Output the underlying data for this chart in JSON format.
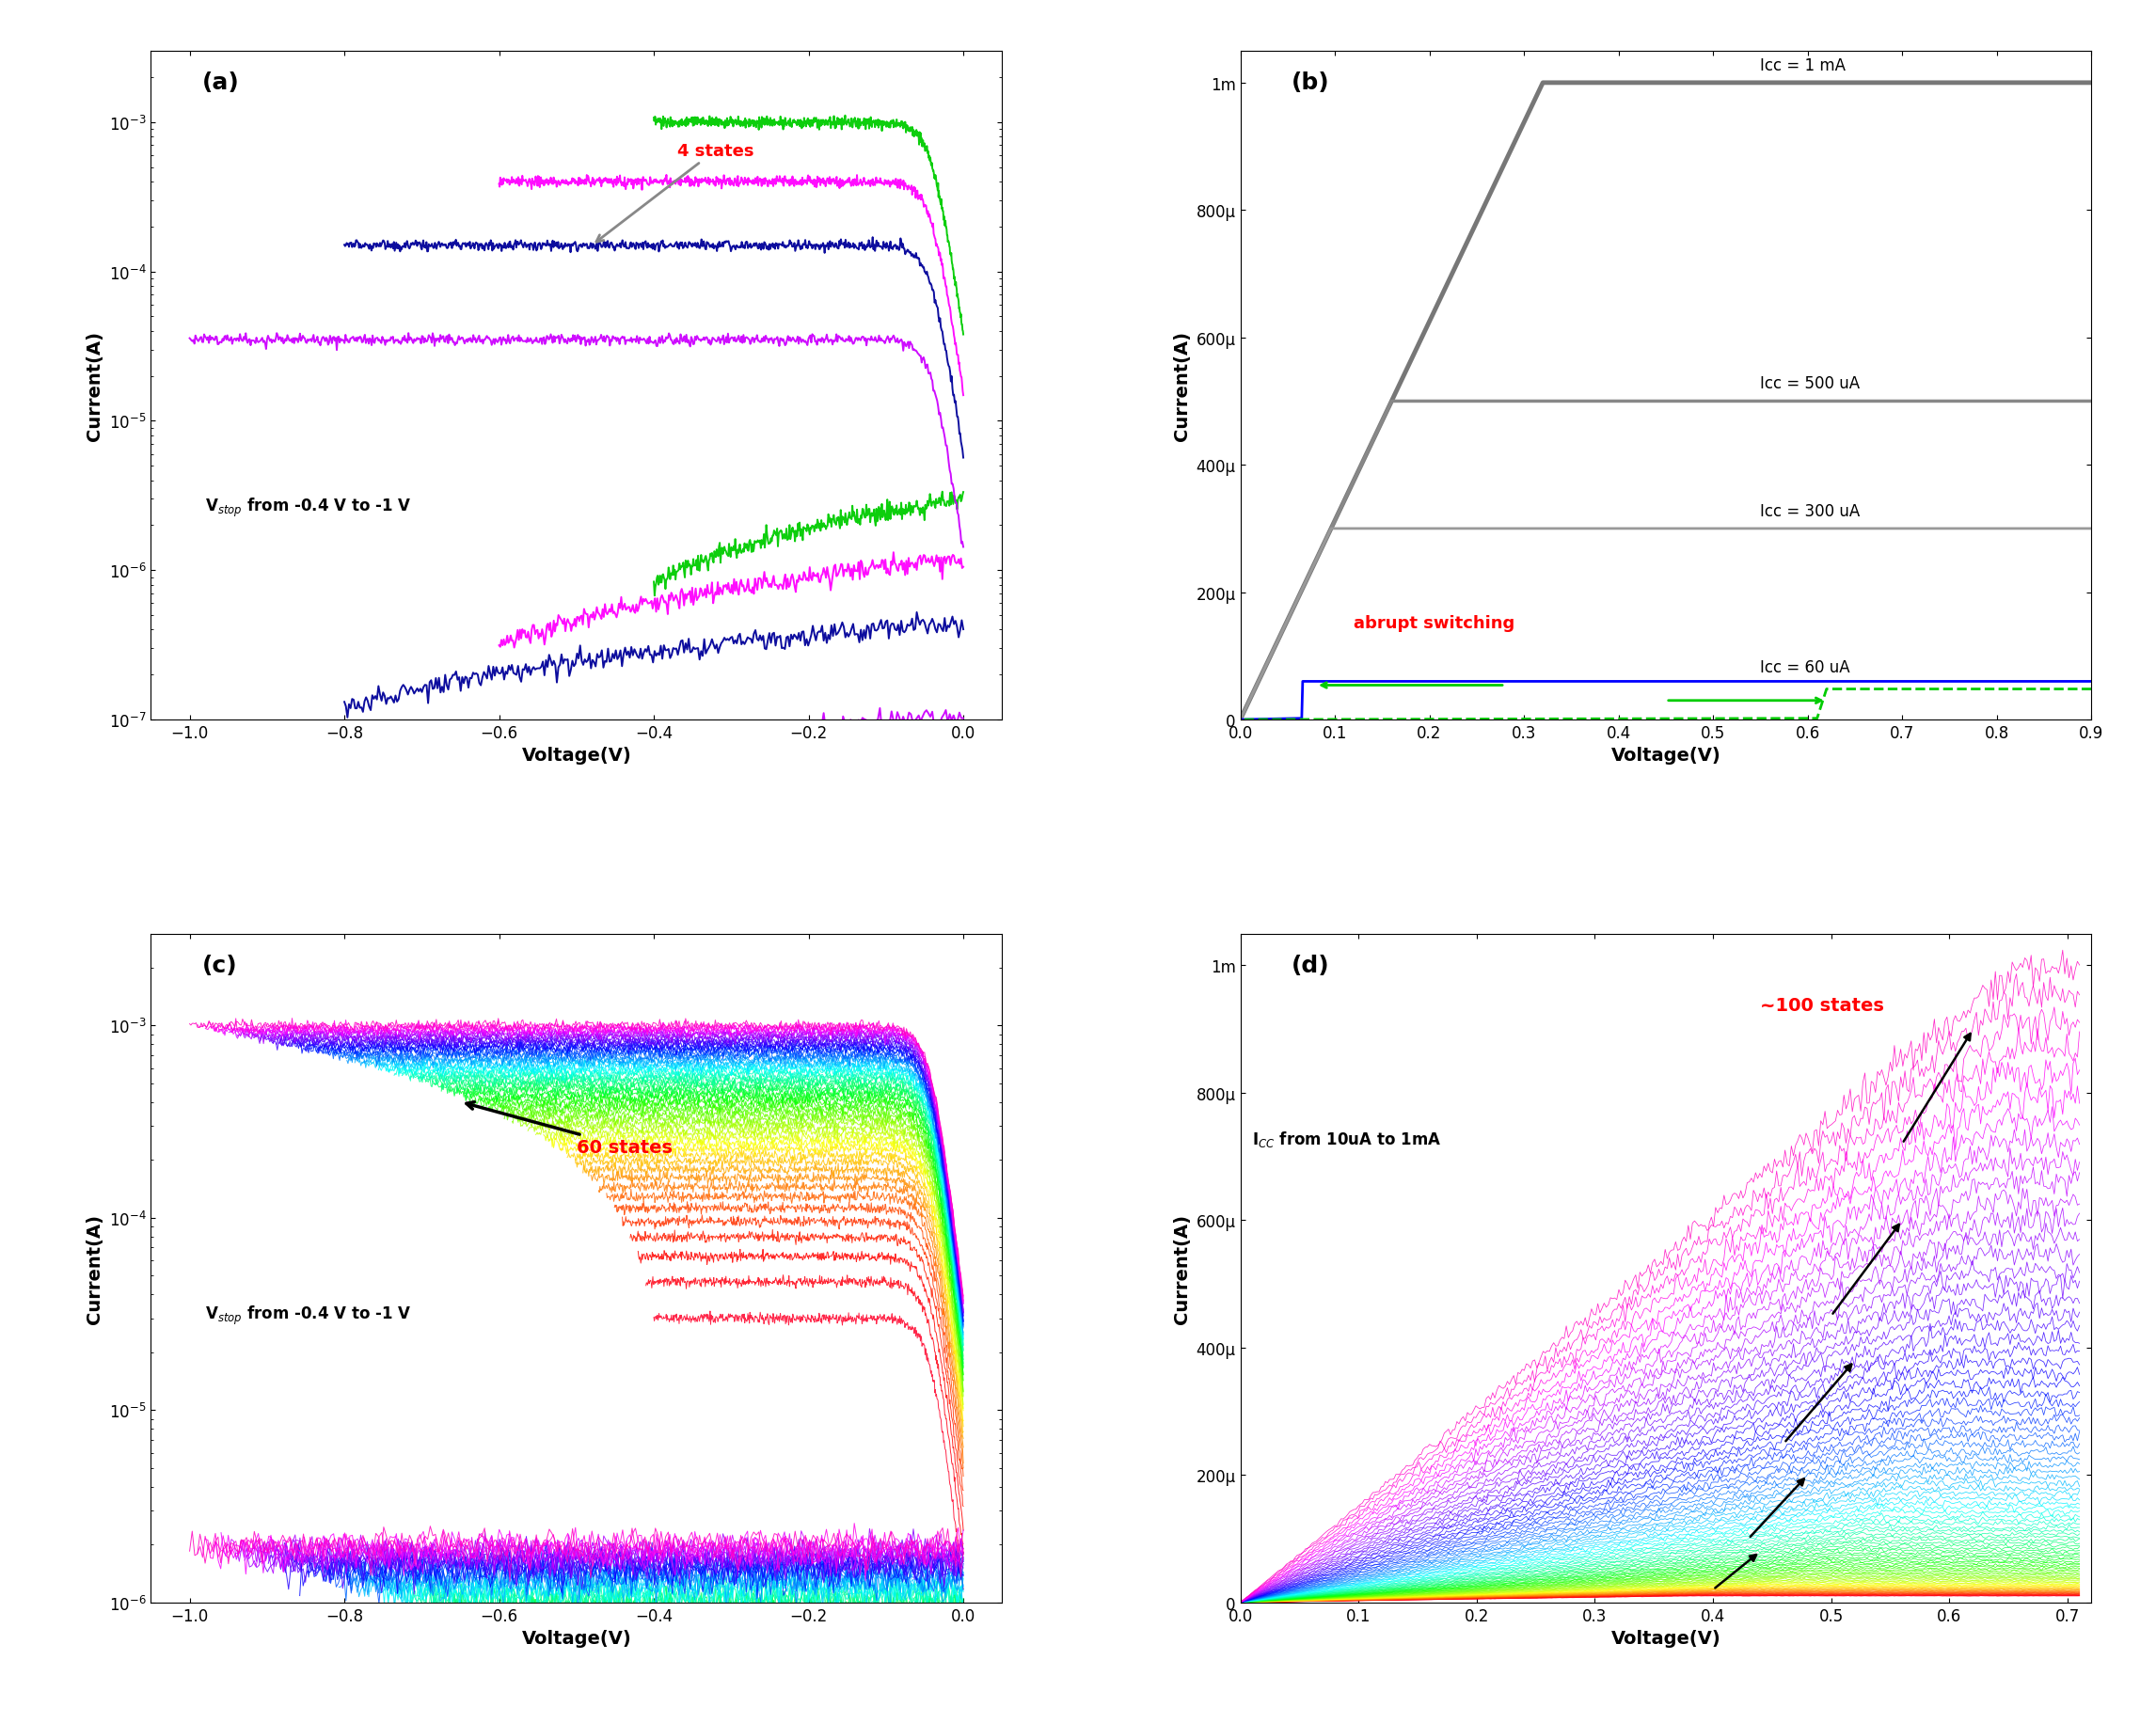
{
  "fig_width": 22.92,
  "fig_height": 18.33,
  "background_color": "#ffffff",
  "panel_a": {
    "label": "(a)",
    "xlabel": "Voltage(V)",
    "ylabel": "Current(A)",
    "xlim": [
      -1.05,
      0.05
    ],
    "ylim_log": [
      1e-07,
      0.003
    ],
    "vstop_vals": [
      -0.4,
      -0.6,
      -0.8,
      -1.0
    ],
    "curve_colors": [
      "#00cc00",
      "#ff00ff",
      "#000099",
      "#cc00ff"
    ],
    "i_max_vals": [
      0.001,
      0.0004,
      0.00015,
      3.5e-05
    ],
    "annotation_states": "4 states",
    "annotation_vstop": "V$_{stop}$ from -0.4 V to -1 V",
    "arrow_color": "#888888"
  },
  "panel_b": {
    "label": "(b)",
    "xlabel": "Voltage(V)",
    "ylabel": "Current(A)",
    "xlim": [
      0.0,
      0.9
    ],
    "ylim": [
      0,
      0.00105
    ],
    "gray_icc": [
      0.001,
      0.0005,
      0.0003
    ],
    "gray_labels": [
      "Icc = 1 mA",
      "Icc = 500 uA",
      "Icc = 300 uA"
    ],
    "gray_lw": [
      3.5,
      2.5,
      2.0
    ],
    "gray_colors": [
      "#777777",
      "#888888",
      "#999999"
    ],
    "blue_icc": 6e-05,
    "blue_label": "Icc = 60 uA",
    "annotation_abrupt": "abrupt switching",
    "abrupt_color": "#ff0000"
  },
  "panel_c": {
    "label": "(c)",
    "xlabel": "Voltage(V)",
    "ylabel": "Current(A)",
    "xlim": [
      -1.05,
      0.05
    ],
    "ylim_log": [
      1e-06,
      0.003
    ],
    "n_curves": 60,
    "annotation_states": "60 states",
    "annotation_vstop": "V$_{stop}$ from -0.4 V to -1 V"
  },
  "panel_d": {
    "label": "(d)",
    "xlabel": "Voltage(V)",
    "ylabel": "Current(A)",
    "xlim": [
      0.0,
      0.72
    ],
    "ylim": [
      0,
      0.00105
    ],
    "n_curves": 100,
    "annotation_states": "~100 states",
    "annotation_icc": "I$_{CC}$ from 10uA to 1mA",
    "states_color": "#ff0000"
  }
}
